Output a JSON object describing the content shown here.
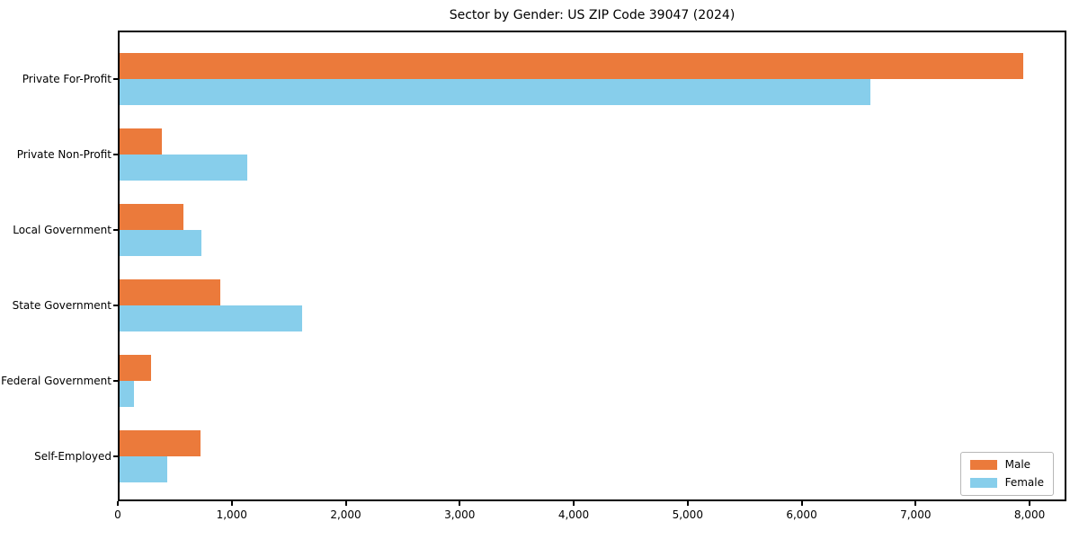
{
  "figure": {
    "title": "Sector by Gender: US ZIP Code 39047 (2024)",
    "background_color": "#ffffff"
  },
  "chart_data": {
    "type": "bar",
    "orientation": "horizontal",
    "title": "Sector by Gender: US ZIP Code 39047 (2024)",
    "categories": [
      "Private For-Profit",
      "Private Non-Profit",
      "Local Government",
      "State Government",
      "Federal Government",
      "Self-Employed"
    ],
    "series": [
      {
        "name": "Male",
        "color": "#EB7A3B",
        "values": [
          7930,
          370,
          560,
          880,
          280,
          710
        ]
      },
      {
        "name": "Female",
        "color": "#87CEEB",
        "values": [
          6590,
          1120,
          720,
          1600,
          130,
          420
        ]
      }
    ],
    "xlabel": "",
    "ylabel": "",
    "xlim": [
      0,
      8323
    ],
    "xticks": [
      0,
      1000,
      2000,
      3000,
      4000,
      5000,
      6000,
      7000,
      8000
    ],
    "xtick_labels": [
      "0",
      "1,000",
      "2,000",
      "3,000",
      "4,000",
      "5,000",
      "6,000",
      "7,000",
      "8,000"
    ],
    "grid": false,
    "legend_position": "lower right"
  },
  "legend": {
    "items": [
      {
        "label": "Male",
        "color": "#EB7A3B"
      },
      {
        "label": "Female",
        "color": "#87CEEB"
      }
    ]
  }
}
